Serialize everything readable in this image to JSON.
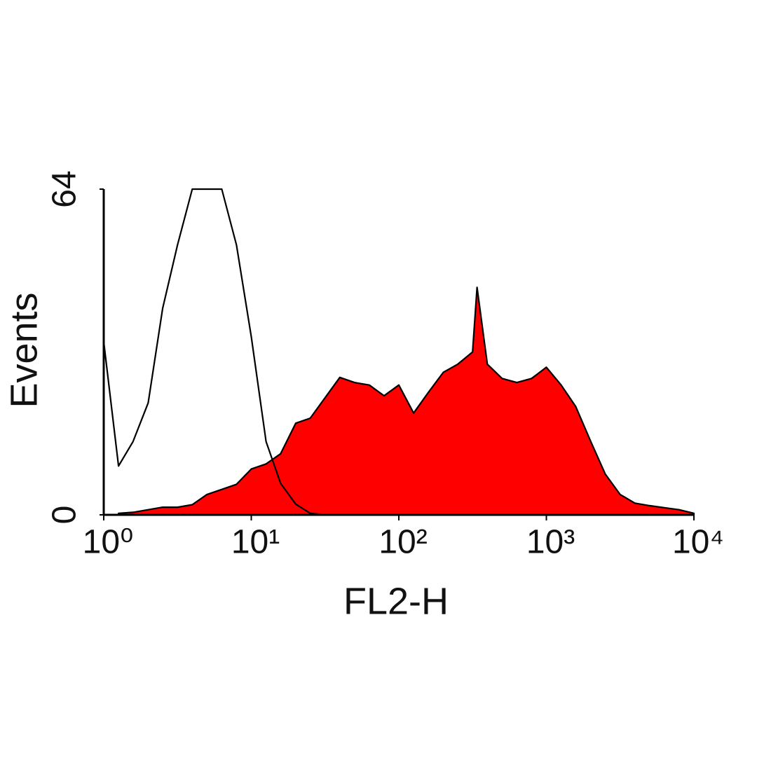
{
  "chart_data": {
    "type": "area",
    "xlabel": "FL2-H",
    "ylabel": "Events",
    "xscale": "log",
    "xlim": [
      1,
      10000
    ],
    "ylim": [
      0,
      64
    ],
    "xticks": [
      {
        "value": 1,
        "label": "10⁰"
      },
      {
        "value": 10,
        "label": "10¹"
      },
      {
        "value": 100,
        "label": "10²"
      },
      {
        "value": 1000,
        "label": "10³"
      },
      {
        "value": 10000,
        "label": "10⁴"
      }
    ],
    "yticks": [
      0,
      64
    ],
    "series": [
      {
        "color": "#ff0000",
        "filled": true,
        "x": [
          1.26,
          1.58,
          2.0,
          2.51,
          3.16,
          3.98,
          5.01,
          6.31,
          7.94,
          10,
          12.6,
          15.8,
          20,
          25.1,
          31.6,
          39.8,
          50.1,
          63.1,
          79.4,
          100,
          126,
          158,
          200,
          251,
          316,
          339,
          398,
          501,
          631,
          794,
          1000,
          1260,
          1580,
          2000,
          2510,
          3160,
          3980,
          5010,
          6310,
          7940,
          10000
        ],
        "values": [
          0.3,
          0.5,
          1,
          1.5,
          1.5,
          2,
          4,
          5,
          6,
          9,
          10,
          12,
          18,
          19,
          23,
          27,
          26,
          25.5,
          23.4,
          25.5,
          20,
          24,
          28,
          29.6,
          32,
          44.7,
          29.6,
          26.8,
          26,
          26.8,
          29,
          25.5,
          21.3,
          14.4,
          8,
          4,
          2.3,
          1.8,
          1.4,
          1,
          0.3
        ]
      },
      {
        "color": "#000000",
        "filled": false,
        "x": [
          1,
          1.26,
          1.58,
          2.0,
          2.51,
          3.16,
          3.98,
          5.01,
          6.31,
          7.94,
          10,
          12.6,
          15.8,
          20,
          25.1,
          31.6
        ],
        "values": [
          34,
          9.6,
          14.4,
          22,
          40.6,
          53,
          64,
          64,
          64,
          53,
          35,
          14.4,
          6.2,
          2.1,
          0.3,
          0
        ]
      }
    ]
  }
}
